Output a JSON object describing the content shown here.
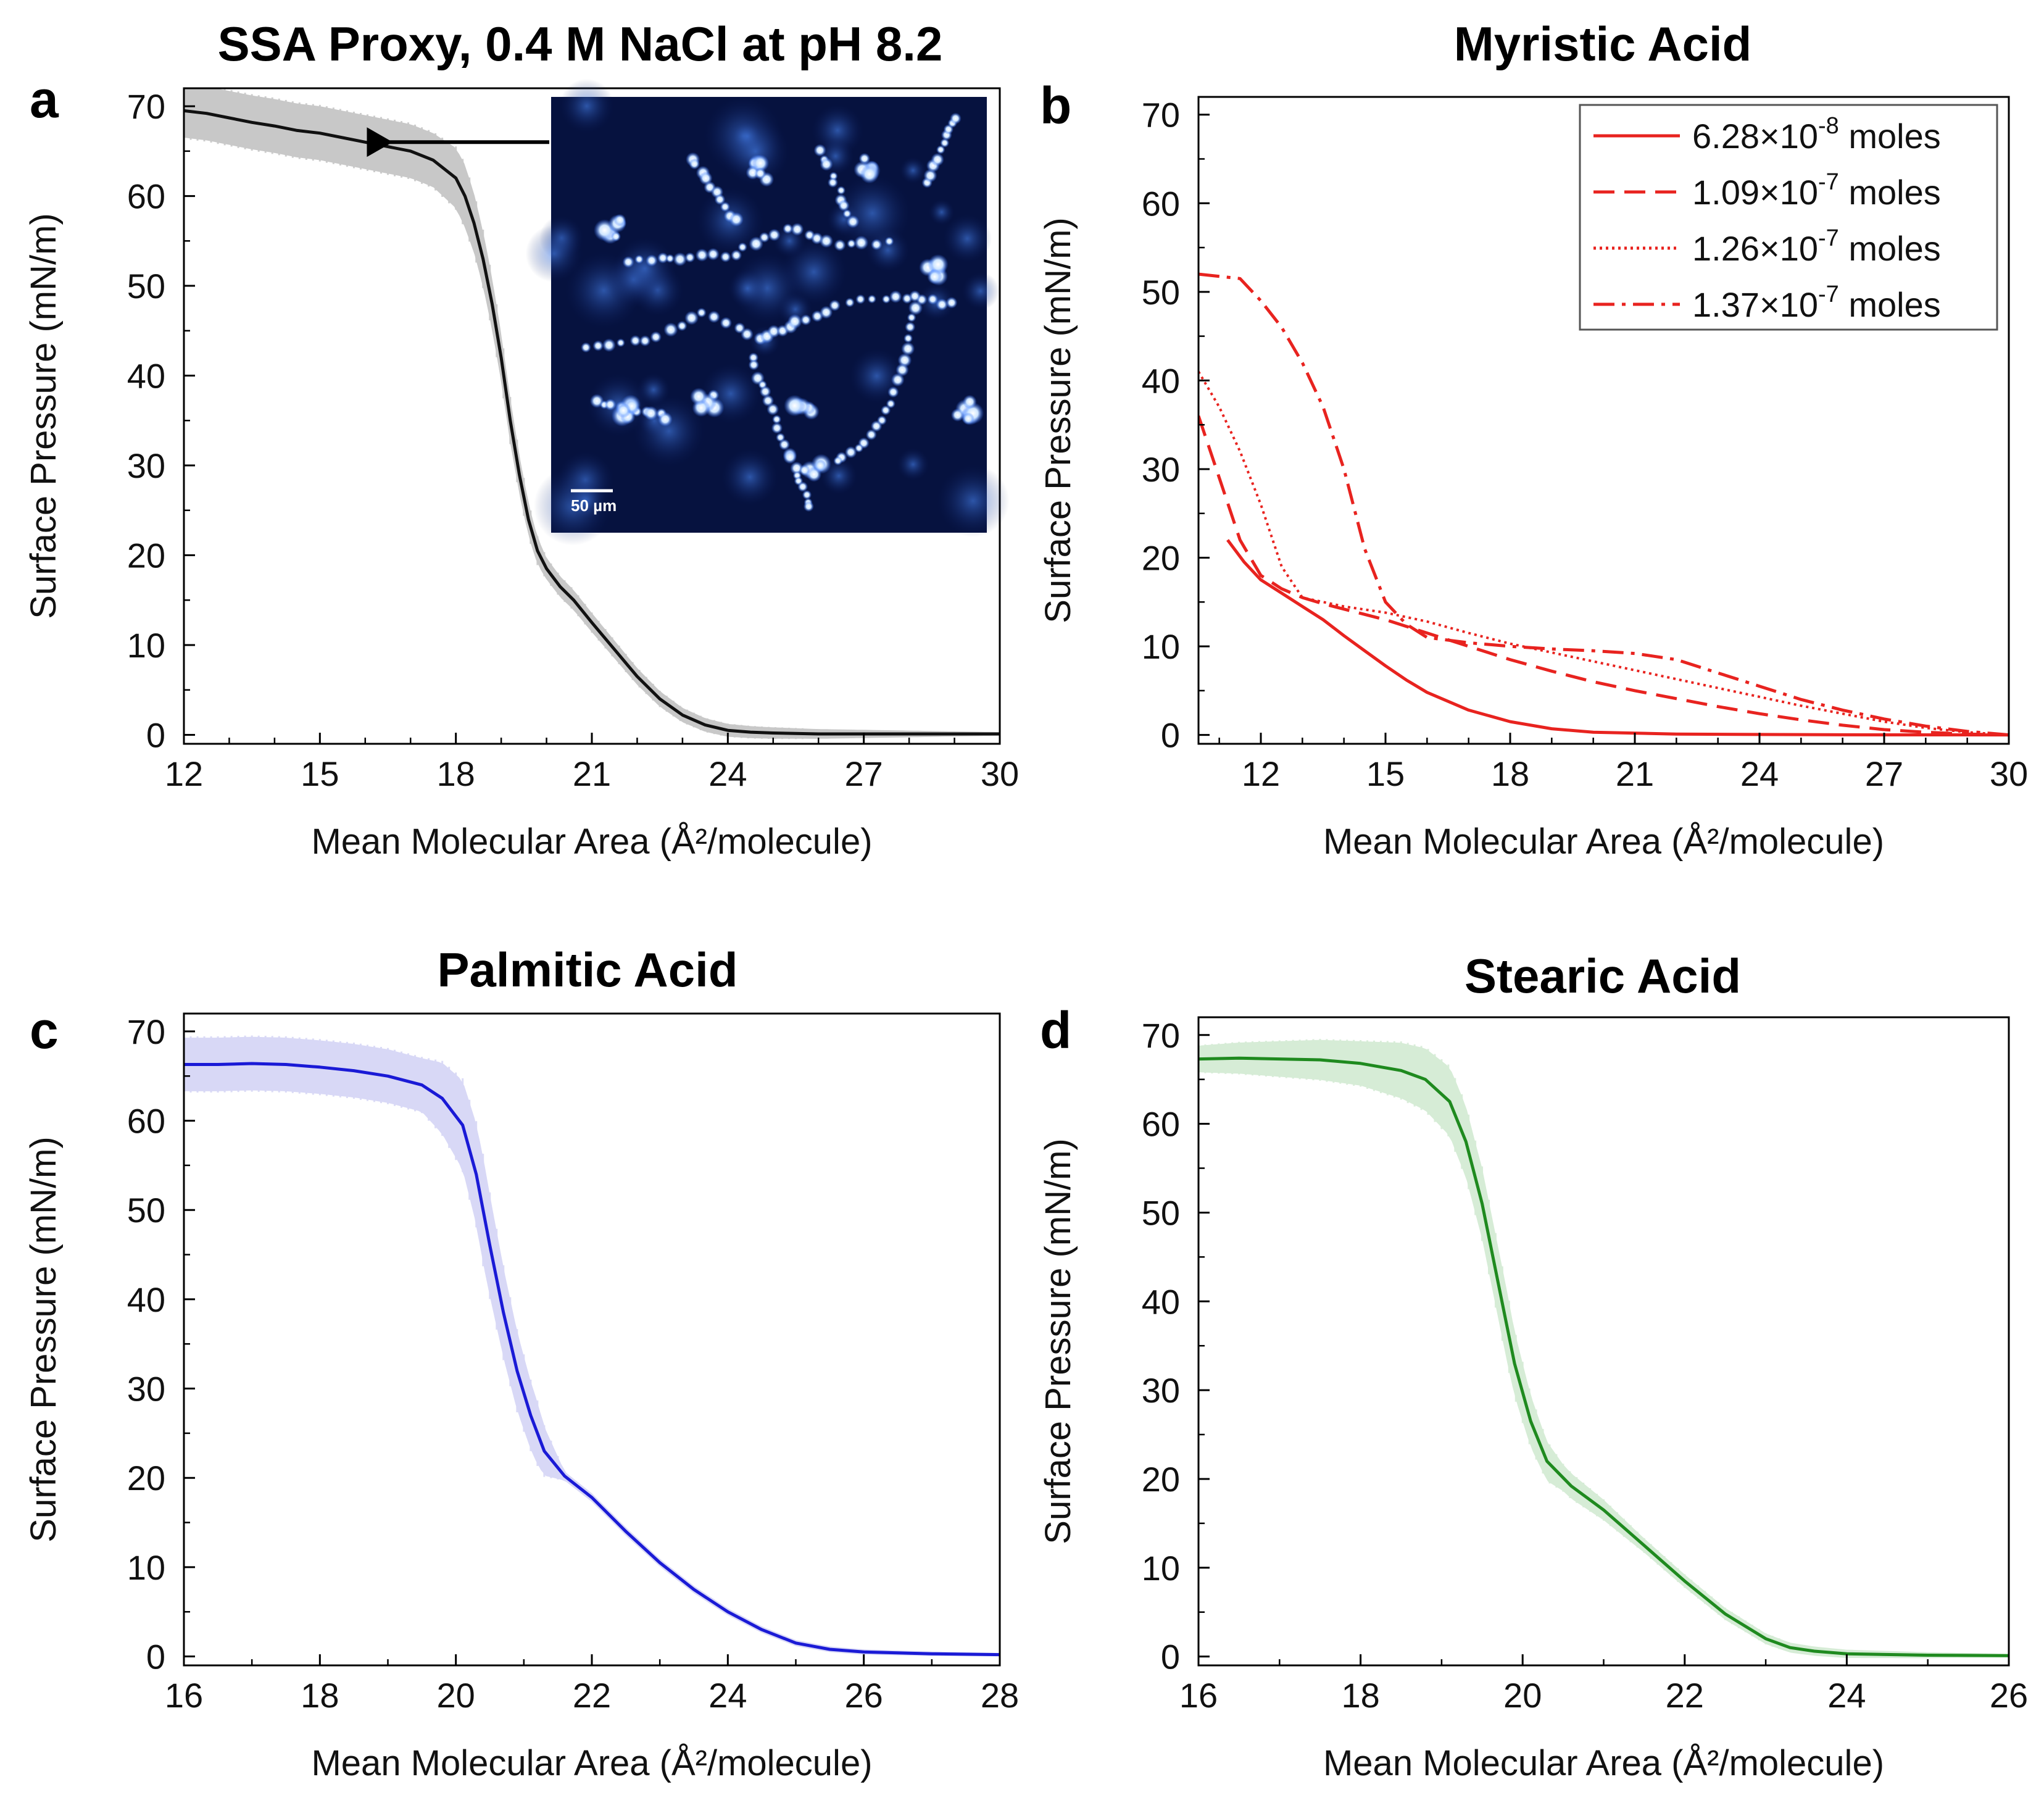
{
  "colors": {
    "black": "#111111",
    "red": "#e8231f",
    "blue": "#1a1ad6",
    "green": "#1f8a1f",
    "band_gray": "#c8c8c8",
    "band_blue": "#d8d8f6",
    "band_green": "#d6ecd6",
    "inset_bg": "#06123f"
  },
  "chart_data": [
    {
      "id": "a",
      "type": "line",
      "letter": "a",
      "title": "SSA Proxy, 0.4 M NaCl at pH 8.2",
      "xlabel": "Mean Molecular Area (Å²/molecule)",
      "ylabel": "Surface Pressure (mN/m)",
      "xlim": [
        12,
        30
      ],
      "ylim": [
        -1,
        72
      ],
      "xticks": [
        "12",
        "15",
        "18",
        "21",
        "24",
        "27",
        "30"
      ],
      "yticks": [
        "0",
        "10",
        "20",
        "30",
        "40",
        "50",
        "60",
        "70"
      ],
      "color": "black",
      "band": "band_gray",
      "band_width": [
        [
          12,
          3
        ],
        [
          17.5,
          3
        ],
        [
          18.2,
          3.5
        ],
        [
          19.2,
          2.5
        ],
        [
          20,
          1.2
        ],
        [
          23,
          0.8
        ],
        [
          30,
          0.2
        ]
      ],
      "series": [
        {
          "name": "SSA Proxy",
          "style": "solid",
          "x": [
            12,
            12.5,
            13,
            13.5,
            14,
            14.5,
            15,
            15.5,
            16,
            16.5,
            17,
            17.5,
            18,
            18.2,
            18.4,
            18.6,
            18.8,
            19,
            19.2,
            19.4,
            19.6,
            19.8,
            20,
            20.3,
            20.6,
            21,
            21.5,
            22,
            22.5,
            23,
            23.5,
            24,
            24.5,
            25,
            26,
            27,
            28,
            30
          ],
          "y": [
            69.5,
            69.2,
            68.7,
            68.2,
            67.8,
            67.3,
            67,
            66.5,
            66,
            65.5,
            65,
            64,
            62,
            60,
            57,
            53,
            48,
            42,
            35,
            29,
            24,
            20.5,
            18.5,
            16.5,
            15,
            12.5,
            9.5,
            6.5,
            4,
            2.2,
            1.1,
            0.5,
            0.3,
            0.2,
            0.1,
            0.1,
            0.1,
            0.1
          ]
        }
      ],
      "inset": {
        "scale_bar": "50 µm",
        "arrow_target": [
          16.2,
          66
        ]
      }
    },
    {
      "id": "b",
      "type": "line",
      "letter": "b",
      "title": "Myristic Acid",
      "xlabel": "Mean Molecular Area (Å²/molecule)",
      "ylabel": "Surface Pressure (mN/m)",
      "xlim": [
        10.5,
        30
      ],
      "ylim": [
        -1,
        72
      ],
      "xticks": [
        "12",
        "15",
        "18",
        "21",
        "24",
        "27",
        "30"
      ],
      "yticks": [
        "0",
        "10",
        "20",
        "30",
        "40",
        "50",
        "60",
        "70"
      ],
      "color": "red",
      "legend": {
        "position": "top-right"
      },
      "series": [
        {
          "name_base": "6.28×10",
          "name_exp": "-8",
          "name_unit": " moles",
          "style": "solid",
          "x": [
            11.2,
            11.6,
            12,
            12.5,
            13,
            13.5,
            14,
            14.5,
            15,
            15.5,
            16,
            17,
            18,
            19,
            20,
            22,
            24,
            26,
            28,
            30
          ],
          "y": [
            22,
            19.5,
            17.5,
            16,
            14.5,
            13,
            11.2,
            9.5,
            7.8,
            6.2,
            4.8,
            2.8,
            1.5,
            0.7,
            0.3,
            0.1,
            0.05,
            0.02,
            0.01,
            0
          ]
        },
        {
          "name_base": "1.09×10",
          "name_exp": "-7",
          "name_unit": " moles",
          "style": "dashed",
          "x": [
            10.5,
            11,
            11.5,
            12,
            12.5,
            13,
            13.5,
            14,
            15,
            16,
            17,
            18,
            19,
            20,
            21,
            22,
            23,
            24,
            25,
            26,
            27,
            28,
            29,
            30
          ],
          "y": [
            36,
            29,
            22,
            18,
            16.5,
            15.5,
            14.8,
            14.2,
            13,
            11.5,
            10,
            8.5,
            7.2,
            6,
            5,
            4.1,
            3.2,
            2.4,
            1.7,
            1.1,
            0.6,
            0.3,
            0.1,
            0
          ]
        },
        {
          "name_base": "1.26×10",
          "name_exp": "-7",
          "name_unit": " moles",
          "style": "dotted",
          "x": [
            10.5,
            11,
            11.5,
            12,
            12.5,
            13,
            14,
            15,
            16,
            17,
            18,
            19,
            20,
            21,
            22,
            23,
            24,
            25,
            26,
            27,
            28,
            29,
            30
          ],
          "y": [
            41,
            37,
            32,
            26,
            19,
            15.5,
            14.5,
            13.8,
            12.8,
            11.5,
            10.3,
            9.3,
            8.3,
            7.3,
            6.3,
            5.3,
            4.3,
            3.3,
            2.4,
            1.5,
            0.8,
            0.3,
            0
          ]
        },
        {
          "name_base": "1.37×10",
          "name_exp": "-7",
          "name_unit": " moles",
          "style": "dashdot",
          "x": [
            10.5,
            11.5,
            12,
            12.5,
            13,
            13.5,
            14,
            14.5,
            15,
            15.5,
            16,
            17,
            18,
            19,
            20,
            21,
            22,
            23,
            24,
            25,
            26,
            27,
            28,
            29,
            30
          ],
          "y": [
            52,
            51.5,
            49,
            46,
            42,
            37,
            30,
            21,
            15,
            12.5,
            11,
            10.4,
            10,
            9.7,
            9.5,
            9.2,
            8.5,
            7,
            5.5,
            4,
            2.8,
            1.8,
            1,
            0.4,
            0
          ]
        }
      ]
    },
    {
      "id": "c",
      "type": "line",
      "letter": "c",
      "title": "Palmitic Acid",
      "xlabel": "Mean Molecular Area (Å²/molecule)",
      "ylabel": "Surface Pressure (mN/m)",
      "xlim": [
        16,
        28
      ],
      "ylim": [
        -1,
        72
      ],
      "xticks": [
        "16",
        "18",
        "20",
        "22",
        "24",
        "26",
        "28"
      ],
      "yticks": [
        "0",
        "10",
        "20",
        "30",
        "40",
        "50",
        "60",
        "70"
      ],
      "color": "blue",
      "band": "band_blue",
      "band_width": [
        [
          16,
          3
        ],
        [
          19.5,
          3
        ],
        [
          20.4,
          6
        ],
        [
          21.2,
          3.5
        ],
        [
          21.6,
          0.5
        ],
        [
          28,
          0.2
        ]
      ],
      "series": [
        {
          "name": "Palmitic Acid",
          "style": "solid",
          "x": [
            16,
            16.5,
            17,
            17.5,
            18,
            18.5,
            19,
            19.5,
            19.8,
            20.1,
            20.3,
            20.5,
            20.7,
            20.9,
            21.1,
            21.3,
            21.6,
            22,
            22.5,
            23,
            23.5,
            24,
            24.5,
            25,
            25.5,
            26,
            27,
            28
          ],
          "y": [
            66.3,
            66.3,
            66.4,
            66.3,
            66,
            65.6,
            65,
            64,
            62.5,
            59.5,
            54,
            46,
            38.5,
            32,
            27,
            23,
            20.2,
            17.8,
            14,
            10.5,
            7.5,
            5,
            3,
            1.5,
            0.8,
            0.5,
            0.3,
            0.2
          ]
        }
      ]
    },
    {
      "id": "d",
      "type": "line",
      "letter": "d",
      "title": "Stearic Acid",
      "xlabel": "Mean Molecular Area (Å²/molecule)",
      "ylabel": "Surface Pressure (mN/m)",
      "xlim": [
        16,
        26
      ],
      "ylim": [
        -1,
        72
      ],
      "xticks": [
        "16",
        "18",
        "20",
        "22",
        "24",
        "26"
      ],
      "yticks": [
        "0",
        "10",
        "20",
        "30",
        "40",
        "50",
        "60",
        "70"
      ],
      "color": "green",
      "band": "band_green",
      "band_width": [
        [
          16,
          1.5
        ],
        [
          18,
          2.5
        ],
        [
          19.2,
          4
        ],
        [
          19.8,
          4
        ],
        [
          20.5,
          1.5
        ],
        [
          21.5,
          0.8
        ],
        [
          26,
          0.2
        ]
      ],
      "series": [
        {
          "name": "Stearic Acid",
          "style": "solid",
          "x": [
            16,
            16.5,
            17,
            17.5,
            18,
            18.5,
            18.8,
            19.1,
            19.3,
            19.5,
            19.7,
            19.9,
            20.1,
            20.3,
            20.6,
            21,
            21.5,
            22,
            22.5,
            23,
            23.3,
            23.6,
            24,
            25,
            26
          ],
          "y": [
            67.3,
            67.4,
            67.3,
            67.2,
            66.8,
            66,
            65,
            62.5,
            58,
            51,
            42,
            33,
            26.5,
            22,
            19.2,
            16.5,
            12.5,
            8.5,
            4.8,
            2,
            1,
            0.6,
            0.3,
            0.15,
            0.1
          ]
        }
      ]
    }
  ]
}
